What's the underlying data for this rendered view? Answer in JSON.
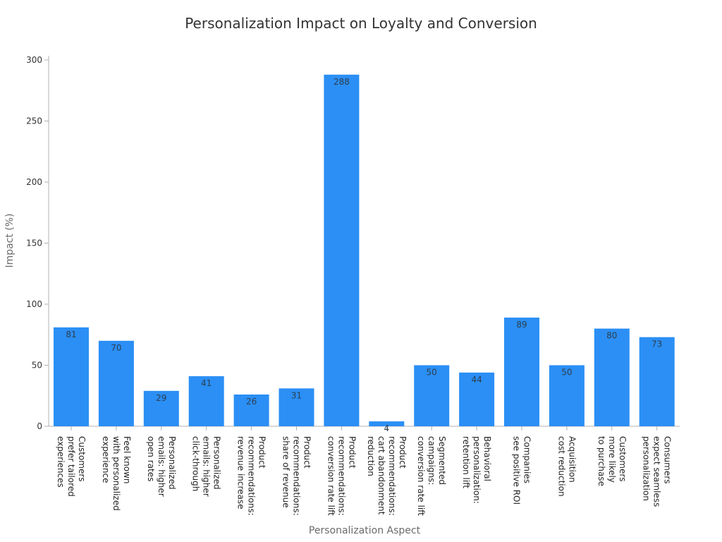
{
  "chart_data": {
    "type": "bar",
    "title": "Personalization Impact on Loyalty and Conversion",
    "xlabel": "Personalization Aspect",
    "ylabel": "Impact (%)",
    "ylim": [
      0,
      300
    ],
    "yticks": [
      0,
      50,
      100,
      150,
      200,
      250,
      300
    ],
    "grid": false,
    "bar_color": "#2b8ff5",
    "categories": [
      [
        "Customers",
        "prefer tailored",
        "experiences"
      ],
      [
        "Feel known",
        "with personalized",
        "experience"
      ],
      [
        "Personalized",
        "emails: higher",
        "open rates"
      ],
      [
        "Personalized",
        "emails: higher",
        "click-through"
      ],
      [
        "Product",
        "recommendations:",
        "revenue increase"
      ],
      [
        "Product",
        "recommendations:",
        "share of revenue"
      ],
      [
        "Product",
        "recommendations:",
        "conversion rate lift"
      ],
      [
        "Product",
        "recommendations:",
        "cart abandonment",
        "reduction"
      ],
      [
        "Segmented",
        "campaigns:",
        "conversion rate lift"
      ],
      [
        "Behavioral",
        "personalization:",
        "retention lift"
      ],
      [
        "Companies",
        "see positive ROI"
      ],
      [
        "Acquisition",
        "cost reduction"
      ],
      [
        "Customers",
        "more likely",
        "to purchase"
      ],
      [
        "Consumers",
        "expect seamless",
        "personalization"
      ]
    ],
    "values": [
      81,
      70,
      29,
      41,
      26,
      31,
      288,
      4,
      50,
      44,
      89,
      50,
      80,
      73
    ],
    "data_labels": [
      "81",
      "70",
      "29",
      "41",
      "26",
      "31",
      "288",
      "4",
      "50",
      "44",
      "89",
      "50",
      "80",
      "73"
    ]
  }
}
